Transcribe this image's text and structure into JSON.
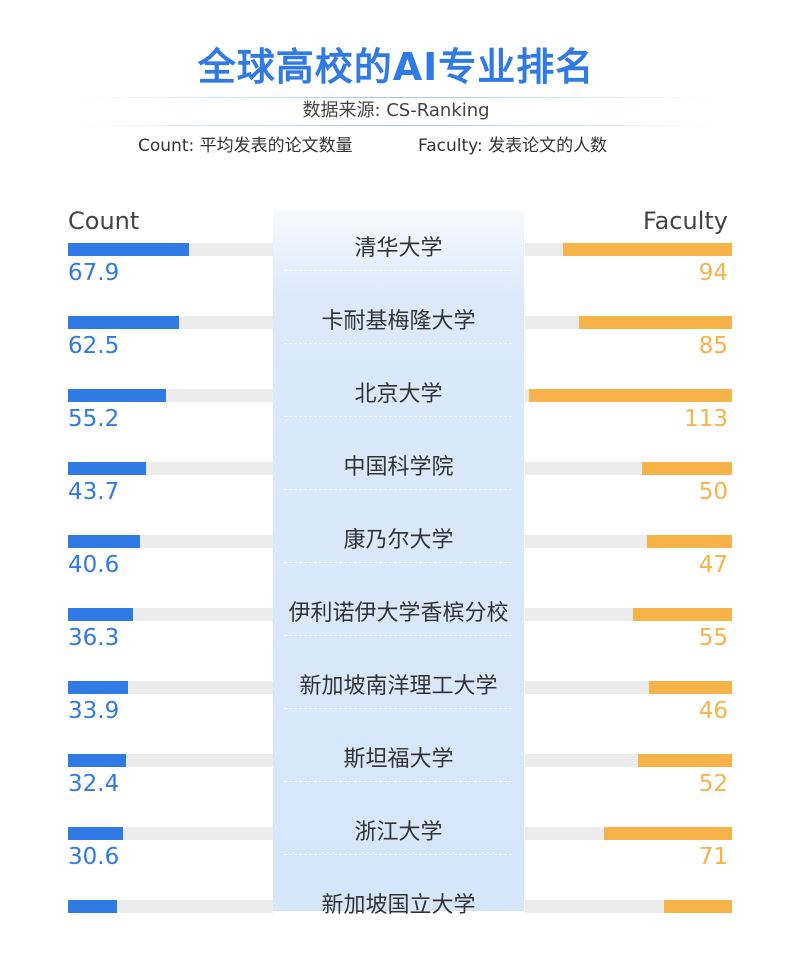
{
  "title": "全球高校的AI专业排名",
  "source": "数据来源: CS-Ranking",
  "legend": {
    "count_note": "Count: 平均发表的论文数量",
    "faculty_note": "Faculty: 发表论文的人数"
  },
  "colors": {
    "count_bar": "#2f7ae5",
    "faculty_bar": "#f5b34a",
    "track": "#ececec",
    "center_band": "#d6e6fa"
  },
  "chart_data": {
    "type": "bar",
    "orientation": "horizontal-diverging",
    "xlabel": "",
    "ylabel": "",
    "categories": [
      "清华大学",
      "卡耐基梅隆大学",
      "北京大学",
      "中国科学院",
      "康乃尔大学",
      "伊利诺伊大学香槟分校",
      "新加坡南洋理工大学",
      "斯坦福大学",
      "浙江大学",
      "新加坡国立大学"
    ],
    "series": [
      {
        "name": "Count",
        "values": [
          67.9,
          62.5,
          55.2,
          43.7,
          40.6,
          36.3,
          33.9,
          32.4,
          30.6,
          27.5
        ],
        "labels": [
          "67.9",
          "62.5",
          "55.2",
          "43.7",
          "40.6",
          "36.3",
          "33.9",
          "32.4",
          "30.6",
          ""
        ],
        "xlim": [
          0,
          115
        ]
      },
      {
        "name": "Faculty",
        "values": [
          94,
          85,
          113,
          50,
          47,
          55,
          46,
          52,
          71,
          38
        ],
        "labels": [
          "94",
          "85",
          "113",
          "50",
          "47",
          "55",
          "46",
          "52",
          "71",
          ""
        ],
        "xlim": [
          0,
          115
        ]
      }
    ]
  }
}
